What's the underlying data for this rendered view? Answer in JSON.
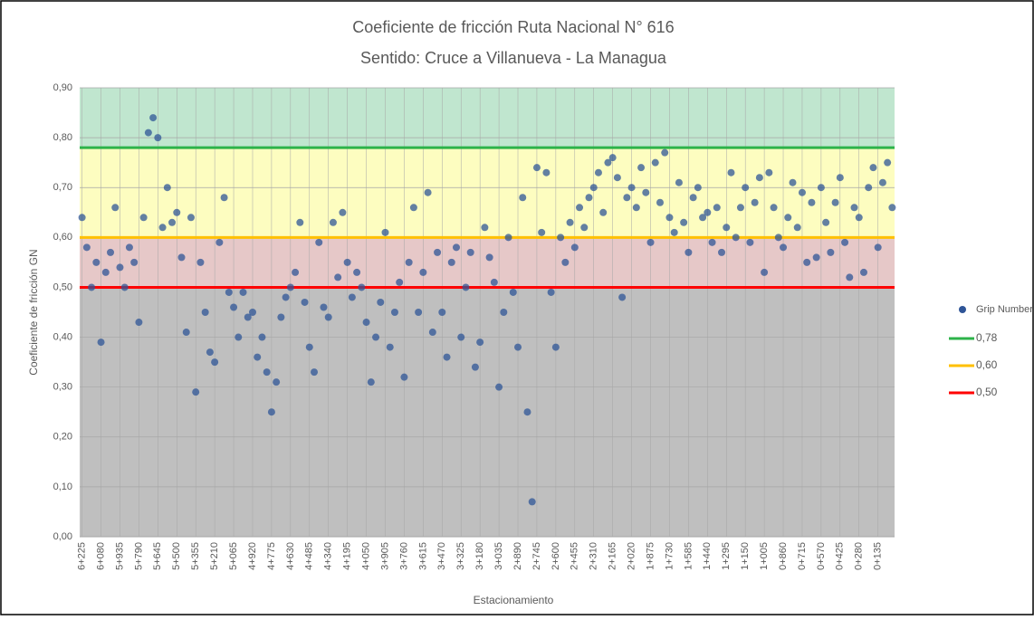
{
  "chart_data": {
    "type": "scatter",
    "title": "Coeficiente de fricción Ruta Nacional N° 616",
    "subtitle": "Sentido: Cruce a Villanueva - La Managua",
    "x_label": "Estacionamiento",
    "y_label": "Coeficiente de fricción GN",
    "categories": [
      "6+225",
      null,
      null,
      null,
      "6+080",
      null,
      null,
      null,
      "5+935",
      null,
      null,
      null,
      "5+790",
      null,
      null,
      null,
      "5+645",
      null,
      null,
      null,
      "5+500",
      null,
      null,
      null,
      "5+355",
      null,
      null,
      null,
      "5+210",
      null,
      null,
      null,
      "5+065",
      null,
      null,
      null,
      "4+920",
      null,
      null,
      null,
      "4+775",
      null,
      null,
      null,
      "4+630",
      null,
      null,
      null,
      "4+485",
      null,
      null,
      null,
      "4+340",
      null,
      null,
      null,
      "4+195",
      null,
      null,
      null,
      "4+050",
      null,
      null,
      null,
      "3+905",
      null,
      null,
      null,
      "3+760",
      null,
      null,
      null,
      "3+615",
      null,
      null,
      null,
      "3+470",
      null,
      null,
      null,
      "3+325",
      null,
      null,
      null,
      "3+180",
      null,
      null,
      null,
      "3+035",
      null,
      null,
      null,
      "2+890",
      null,
      null,
      null,
      "2+745",
      null,
      null,
      null,
      "2+600",
      null,
      null,
      null,
      "2+455",
      null,
      null,
      null,
      "2+310",
      null,
      null,
      null,
      "2+165",
      null,
      null,
      null,
      "2+020",
      null,
      null,
      null,
      "1+875",
      null,
      null,
      null,
      "1+730",
      null,
      null,
      null,
      "1+585",
      null,
      null,
      null,
      "1+440",
      null,
      null,
      null,
      "1+295",
      null,
      null,
      null,
      "1+150",
      null,
      null,
      null,
      "1+005",
      null,
      null,
      null,
      "0+860",
      null,
      null,
      null,
      "0+715",
      null,
      null,
      null,
      "0+570",
      null,
      null,
      null,
      "0+425",
      null,
      null,
      null,
      "0+280",
      null,
      null,
      null,
      "0+135",
      null,
      null,
      null
    ],
    "series": [
      {
        "name": "Grip Number",
        "color": "#2f5597",
        "opacity": 0.75,
        "values": [
          0.64,
          0.58,
          0.5,
          0.55,
          0.39,
          0.53,
          0.57,
          0.66,
          0.54,
          0.5,
          0.58,
          0.55,
          0.43,
          0.64,
          0.81,
          0.84,
          0.8,
          0.62,
          0.7,
          0.63,
          0.65,
          0.56,
          0.41,
          0.64,
          0.29,
          0.55,
          0.45,
          0.37,
          0.35,
          0.59,
          0.68,
          0.49,
          0.46,
          0.4,
          0.49,
          0.44,
          0.45,
          0.36,
          0.4,
          0.33,
          0.25,
          0.31,
          0.44,
          0.48,
          0.5,
          0.53,
          0.63,
          0.47,
          0.38,
          0.33,
          0.59,
          0.46,
          0.44,
          0.63,
          0.52,
          0.65,
          0.55,
          0.48,
          0.53,
          0.5,
          0.43,
          0.31,
          0.4,
          0.47,
          0.61,
          0.38,
          0.45,
          0.51,
          0.32,
          0.55,
          0.66,
          0.45,
          0.53,
          0.69,
          0.41,
          0.57,
          0.45,
          0.36,
          0.55,
          0.58,
          0.4,
          0.5,
          0.57,
          0.34,
          0.39,
          0.62,
          0.56,
          0.51,
          0.3,
          0.45,
          0.6,
          0.49,
          0.38,
          0.68,
          0.25,
          0.07,
          0.74,
          0.61,
          0.73,
          0.49,
          0.38,
          0.6,
          0.55,
          0.63,
          0.58,
          0.66,
          0.62,
          0.68,
          0.7,
          0.73,
          0.65,
          0.75,
          0.76,
          0.72,
          0.48,
          0.68,
          0.7,
          0.66,
          0.74,
          0.69,
          0.59,
          0.75,
          0.67,
          0.77,
          0.64,
          0.61,
          0.71,
          0.63,
          0.57,
          0.68,
          0.7,
          0.64,
          0.65,
          0.59,
          0.66,
          0.57,
          0.62,
          0.73,
          0.6,
          0.66,
          0.7,
          0.59,
          0.67,
          0.72,
          0.53,
          0.73,
          0.66,
          0.6,
          0.58,
          0.64,
          0.71,
          0.62,
          0.69,
          0.55,
          0.67,
          0.56,
          0.7,
          0.63,
          0.57,
          0.67,
          0.72,
          0.59,
          0.52,
          0.66,
          0.64,
          0.53,
          0.7,
          0.74,
          0.58,
          0.71,
          0.75,
          0.66
        ]
      }
    ],
    "thresholds": [
      {
        "name": "0,78",
        "value": 0.78,
        "color": "#2db34a",
        "band": "#c0e6cf"
      },
      {
        "name": "0,60",
        "value": 0.6,
        "color": "#ffc000",
        "band": "#fdfdc0"
      },
      {
        "name": "0,50",
        "value": 0.5,
        "color": "#ff0000",
        "band": "#e6c8c8"
      }
    ],
    "base_band": "#bfbfbf",
    "ylim": [
      0,
      0.9
    ],
    "yticks": [
      {
        "value": 0,
        "label": "0,00"
      },
      {
        "value": 0.1,
        "label": "0,10"
      },
      {
        "value": 0.2,
        "label": "0,20"
      },
      {
        "value": 0.3,
        "label": "0,30"
      },
      {
        "value": 0.4,
        "label": "0,40"
      },
      {
        "value": 0.5,
        "label": "0,50"
      },
      {
        "value": 0.6,
        "label": "0,60"
      },
      {
        "value": 0.7,
        "label": "0,70"
      },
      {
        "value": 0.8,
        "label": "0,80"
      },
      {
        "value": 0.9,
        "label": "0,90"
      }
    ],
    "grid": true,
    "legend": "right"
  }
}
